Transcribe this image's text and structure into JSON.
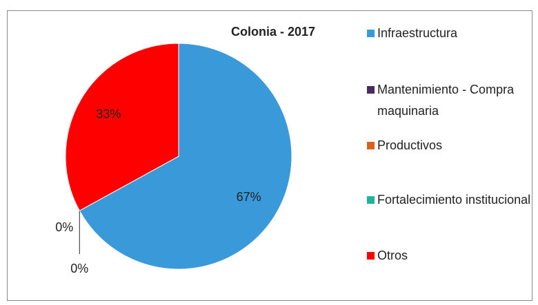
{
  "chart_data": {
    "type": "pie",
    "title": "Colonia - 2017",
    "categories": [
      "Infraestructura",
      "Mantenimiento - Compra maquinaria",
      "Productivos",
      "Fortalecimiento institucional",
      "Otros"
    ],
    "values": [
      67,
      0,
      0,
      0,
      33
    ],
    "value_labels": [
      "67%",
      "0%",
      null,
      "0%",
      "33%"
    ],
    "colors": [
      "#3a9ad9",
      "#4b2a5c",
      "#d9621a",
      "#1fb39a",
      "#ff0000"
    ],
    "legend": "right"
  }
}
